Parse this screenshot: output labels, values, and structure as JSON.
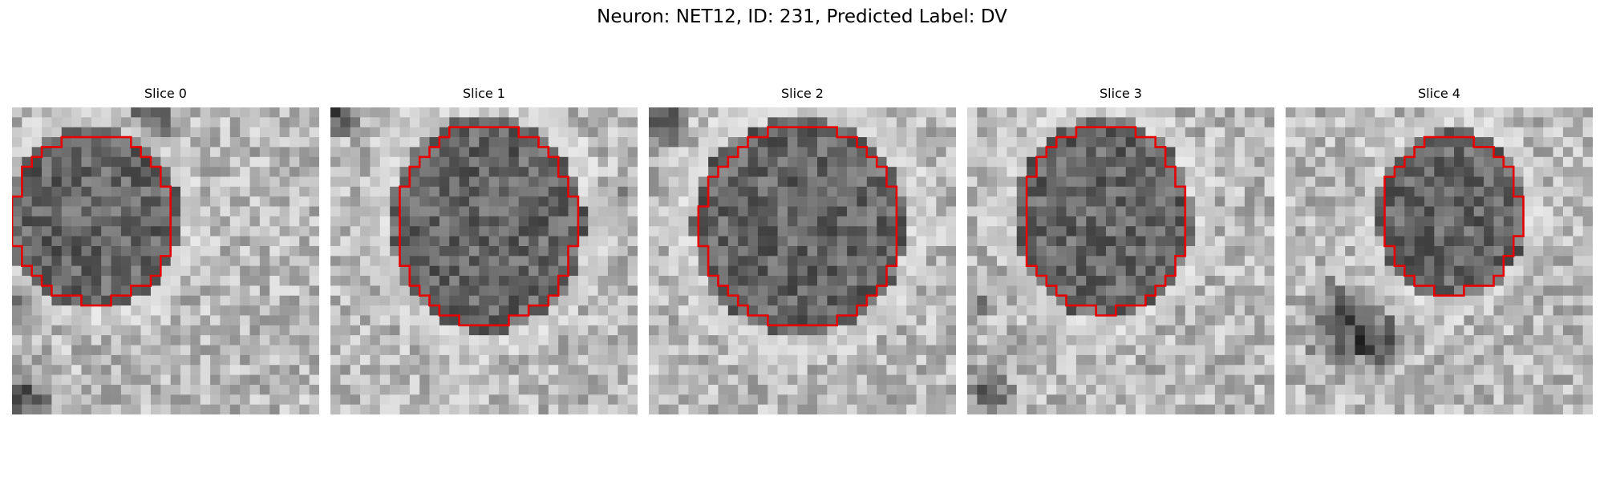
{
  "figure": {
    "title": "Neuron: NET12, ID: 231, Predicted Label: DV"
  },
  "colors": {
    "contour": "#e60000",
    "background": "#ffffff"
  },
  "panels": [
    {
      "title": "Slice 0"
    },
    {
      "title": "Slice 1"
    },
    {
      "title": "Slice 2"
    },
    {
      "title": "Slice 3"
    },
    {
      "title": "Slice 4"
    }
  ]
}
